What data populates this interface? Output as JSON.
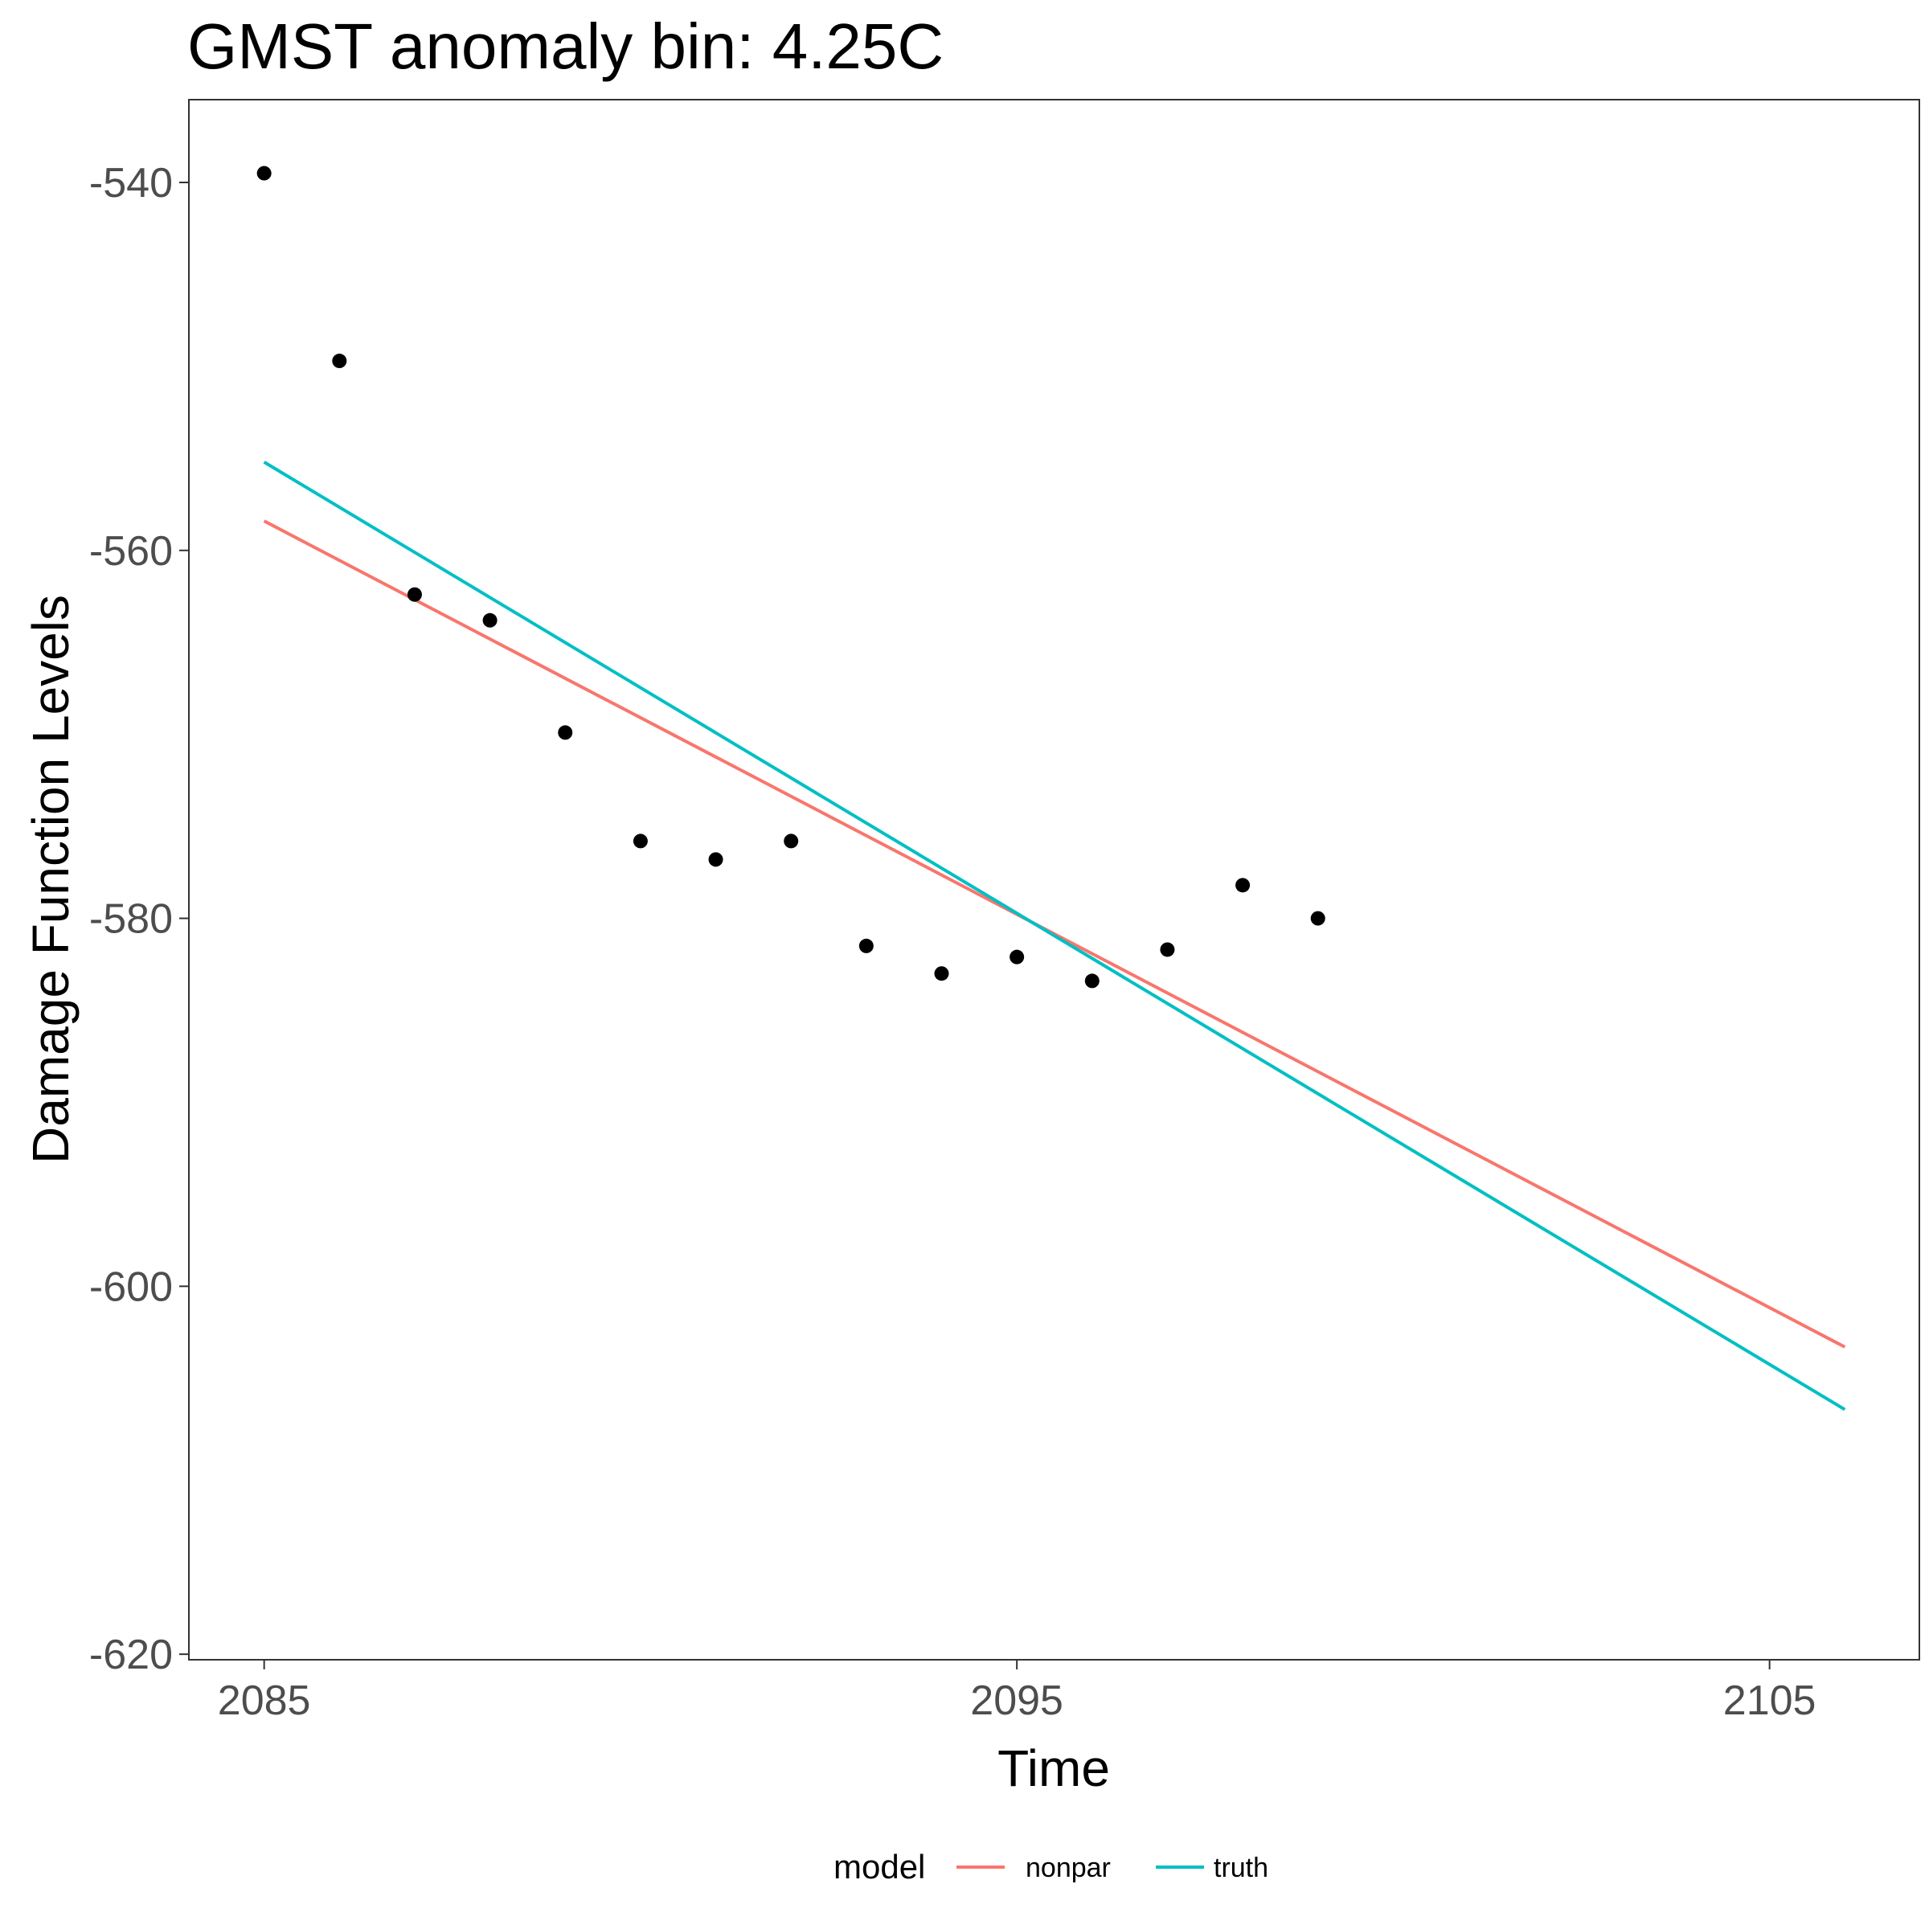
{
  "chart_data": {
    "type": "line",
    "title": "GMST anomaly bin: 4.25C",
    "xlabel": "Time",
    "ylabel": "Damage Function Levels",
    "xlim": [
      2084,
      2106.99
    ],
    "ylim": [
      -620.3,
      -535.5
    ],
    "x_ticks": [
      2085,
      2095,
      2105
    ],
    "x_tick_labels": [
      "2085",
      "2095",
      "2105"
    ],
    "y_ticks": [
      -540,
      -560,
      -580,
      -600,
      -620
    ],
    "y_tick_labels": [
      "-540",
      "-560",
      "-580",
      "-600",
      "-620"
    ],
    "grid": false,
    "legend": {
      "title": "model",
      "position": "bottom"
    },
    "points": {
      "x": [
        2085,
        2086,
        2087,
        2088,
        2089,
        2090,
        2091,
        2092,
        2093,
        2094,
        2095,
        2096,
        2097,
        2098,
        2099
      ],
      "y": [
        -539.5,
        -549.7,
        -562.4,
        -563.8,
        -569.9,
        -575.8,
        -576.8,
        -575.8,
        -581.5,
        -583.0,
        -582.1,
        -583.4,
        -581.7,
        -578.2,
        -580.0
      ]
    },
    "series": [
      {
        "name": "nonpar",
        "color": "#F8766D",
        "x": [
          2085,
          2106
        ],
        "y": [
          -558.4,
          -603.3
        ]
      },
      {
        "name": "truth",
        "color": "#00BFC4",
        "x": [
          2085,
          2106
        ],
        "y": [
          -555.2,
          -606.7
        ]
      }
    ]
  }
}
